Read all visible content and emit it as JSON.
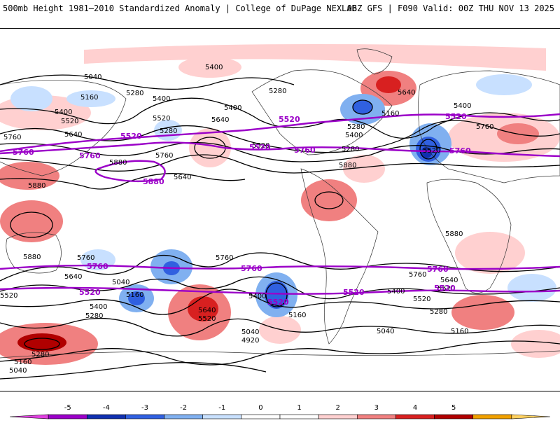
{
  "header": {
    "title": "500mb Height 1981–2010 Standardized Anomaly | College of DuPage NEXLAB",
    "run_info": "06Z GFS | F090 Valid: 00Z THU NOV 13 2025"
  },
  "colors": {
    "purple_contour": "#9b00c8",
    "anom_pos_1": "#ffd0d0",
    "anom_pos_2": "#f08080",
    "anom_pos_3": "#d82020",
    "anom_pos_4": "#b00000",
    "anom_neg_1": "#c8e0ff",
    "anom_neg_2": "#80b0f0",
    "anom_neg_3": "#3060e0",
    "anom_neg_4": "#1030b0"
  },
  "contour_labels": [
    "5400",
    "5040",
    "5160",
    "5280",
    "5280",
    "5400",
    "5520",
    "5640",
    "5760",
    "5880",
    "5880",
    "5400",
    "5400",
    "5520",
    "5640",
    "5640",
    "5520",
    "5280",
    "5400",
    "5760",
    "5160",
    "5280",
    "5880",
    "5400",
    "5280",
    "5760",
    "5640",
    "5520",
    "5880",
    "5640",
    "5520",
    "5760",
    "5400",
    "5520",
    "5280",
    "5160",
    "5040",
    "4920",
    "5400",
    "5520",
    "5160",
    "5040",
    "5280",
    "5160",
    "5040",
    "5640",
    "5760",
    "5400",
    "5520",
    "5280",
    "5040",
    "5160",
    "5760",
    "5880",
    "5640"
  ],
  "purple_labels": [
    "5520",
    "5520",
    "5760",
    "5760",
    "5880",
    "5520",
    "5520",
    "5760",
    "5760",
    "5760",
    "5760",
    "5760",
    "5520",
    "5520",
    "5520",
    "5520"
  ],
  "legend": {
    "ticks": [
      "-5",
      "-4",
      "-3",
      "-2",
      "-1",
      "0",
      "1",
      "2",
      "3",
      "4",
      "5"
    ],
    "colors": [
      "#e040e0",
      "#9b00c8",
      "#1030b0",
      "#3060e0",
      "#80b0f0",
      "#c8e0ff",
      "#ffffff",
      "#ffffff",
      "#ffd0d0",
      "#f08080",
      "#d82020",
      "#b00000",
      "#f0a000",
      "#ffd060"
    ]
  }
}
